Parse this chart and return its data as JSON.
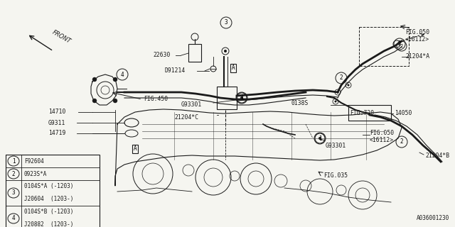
{
  "bg_color": "#f5f5f0",
  "line_color": "#1a1a1a",
  "part_number": "A036001230",
  "legend": [
    {
      "num": "1",
      "lines": [
        "F92604"
      ]
    },
    {
      "num": "2",
      "lines": [
        "0923S*A"
      ]
    },
    {
      "num": "3",
      "lines": [
        "0104S*A (-1203)",
        "J20604  (1203-)"
      ]
    },
    {
      "num": "4",
      "lines": [
        "0104S*B (-1203)",
        "J20882  (1203-)"
      ]
    }
  ],
  "figsize": [
    6.4,
    3.2
  ],
  "dpi": 100
}
